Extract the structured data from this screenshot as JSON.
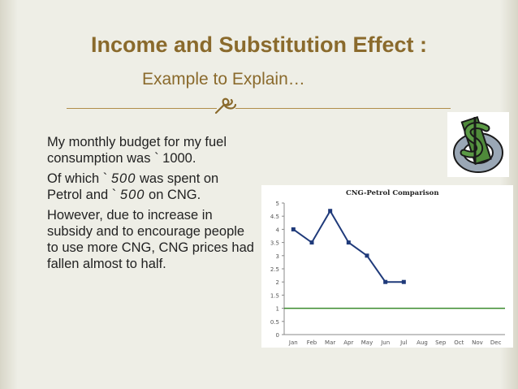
{
  "slide": {
    "title": "Income and Substitution Effect :",
    "subtitle": "Example to Explain…",
    "divider_icon": "ornament-icon"
  },
  "body": {
    "para1": {
      "line1": "My monthly budget for my fuel",
      "line2": "consumption was  ` 1000."
    },
    "para2": {
      "pre1": "Of which  `",
      "amount1": "500",
      "post1": " was spent on",
      "pre2": "Petrol and  `",
      "amount2": "500",
      "post2": " on CNG."
    },
    "para3": {
      "line1": "However, due to increase in",
      "line2": "subsidy and to encourage people",
      "line3": "to use more CNG, CNG prices had",
      "line4": "fallen almost to half."
    }
  },
  "clipart": {
    "icon": "dollar-sign-icon"
  },
  "colors": {
    "title": "#8a6a2c",
    "petrol_line": "#1f3a7a",
    "cng_line": "#3a8a2c"
  },
  "chart_data": {
    "type": "line",
    "title": "CNG-Petrol Comparison",
    "categories": [
      "Jan",
      "Feb",
      "Mar",
      "Apr",
      "May",
      "Jun",
      "Jul",
      "Aug",
      "Sep",
      "Oct",
      "Nov",
      "Dec"
    ],
    "series": [
      {
        "values": [
          4,
          3.5,
          4.7,
          3.5,
          3,
          2,
          2,
          null,
          null,
          null,
          null,
          null
        ],
        "color": "#1f3a7a"
      },
      {
        "values": [
          1,
          1,
          1,
          1,
          1,
          1,
          1,
          1,
          1,
          1,
          1,
          1
        ],
        "color": "#3a8a2c"
      }
    ],
    "ylim": [
      0,
      5
    ],
    "yticks": [
      "0",
      "0.5",
      "1",
      "1.5",
      "2",
      "2.5",
      "3",
      "3.5",
      "4",
      "4.5",
      "5"
    ],
    "grid": false,
    "legend": "none"
  }
}
